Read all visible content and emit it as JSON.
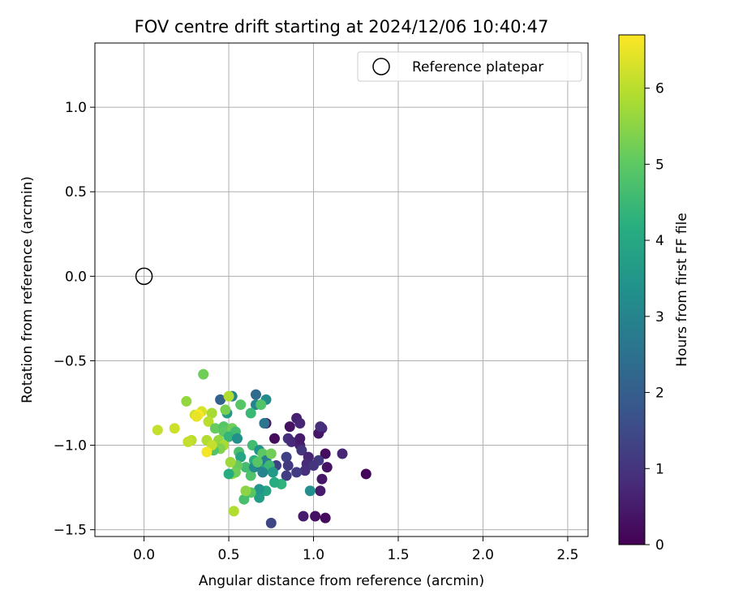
{
  "chart_data": {
    "type": "scatter",
    "title": "FOV centre drift starting at 2024/12/06 10:40:47",
    "xlabel": "Angular distance from reference (arcmin)",
    "ylabel": "Rotation from reference (arcmin)",
    "xlim": [
      -0.29,
      2.62
    ],
    "ylim": [
      -1.54,
      1.38
    ],
    "xticks": [
      0.0,
      0.5,
      1.0,
      1.5,
      2.0,
      2.5
    ],
    "xtick_labels": [
      "0.0",
      "0.5",
      "1.0",
      "1.5",
      "2.0",
      "2.5"
    ],
    "yticks": [
      -1.5,
      -1.0,
      -0.5,
      0.0,
      0.5,
      1.0
    ],
    "ytick_labels": [
      "−1.5",
      "−1.0",
      "−0.5",
      "0.0",
      "0.5",
      "1.0"
    ],
    "grid": true,
    "legend_position": "top-right",
    "reference": {
      "name": "Reference platepar",
      "x": 0.0,
      "y": 0.0
    },
    "colorbar": {
      "label": "Hours from first FF file",
      "range": [
        0,
        6.7
      ],
      "colormap": "viridis",
      "ticks": [
        0,
        1,
        2,
        3,
        4,
        5,
        6
      ],
      "tick_labels": [
        "0",
        "1",
        "2",
        "3",
        "4",
        "5",
        "6"
      ]
    },
    "points": [
      {
        "x": 1.31,
        "y": -1.17,
        "t": 0.1
      },
      {
        "x": 1.07,
        "y": -1.43,
        "t": 0.2
      },
      {
        "x": 1.01,
        "y": -1.42,
        "t": 0.3
      },
      {
        "x": 0.94,
        "y": -1.42,
        "t": 0.5
      },
      {
        "x": 1.07,
        "y": -1.05,
        "t": 0.2
      },
      {
        "x": 1.08,
        "y": -1.13,
        "t": 0.3
      },
      {
        "x": 1.05,
        "y": -1.2,
        "t": 0.4
      },
      {
        "x": 1.04,
        "y": -1.27,
        "t": 0.5
      },
      {
        "x": 1.17,
        "y": -1.05,
        "t": 0.7
      },
      {
        "x": 1.05,
        "y": -0.9,
        "t": 0.8
      },
      {
        "x": 1.03,
        "y": -0.93,
        "t": 0.4
      },
      {
        "x": 1.04,
        "y": -0.89,
        "t": 0.9
      },
      {
        "x": 0.9,
        "y": -0.84,
        "t": 0.6
      },
      {
        "x": 0.92,
        "y": -0.87,
        "t": 0.7
      },
      {
        "x": 0.86,
        "y": -0.89,
        "t": 0.3
      },
      {
        "x": 0.77,
        "y": -0.96,
        "t": 0.2
      },
      {
        "x": 0.72,
        "y": -0.87,
        "t": 0.3
      },
      {
        "x": 0.85,
        "y": -0.96,
        "t": 0.9
      },
      {
        "x": 0.87,
        "y": -0.98,
        "t": 0.8
      },
      {
        "x": 0.92,
        "y": -1.0,
        "t": 0.6
      },
      {
        "x": 0.92,
        "y": -0.96,
        "t": 0.5
      },
      {
        "x": 0.93,
        "y": -1.03,
        "t": 1.0
      },
      {
        "x": 0.97,
        "y": -1.07,
        "t": 0.7
      },
      {
        "x": 0.96,
        "y": -1.11,
        "t": 0.8
      },
      {
        "x": 1.03,
        "y": -1.09,
        "t": 1.1
      },
      {
        "x": 1.0,
        "y": -1.12,
        "t": 1.0
      },
      {
        "x": 0.95,
        "y": -1.15,
        "t": 0.9
      },
      {
        "x": 0.9,
        "y": -1.16,
        "t": 1.2
      },
      {
        "x": 0.84,
        "y": -1.07,
        "t": 1.3
      },
      {
        "x": 0.85,
        "y": -1.12,
        "t": 1.1
      },
      {
        "x": 0.84,
        "y": -1.18,
        "t": 1.2
      },
      {
        "x": 0.78,
        "y": -1.12,
        "t": 1.3
      },
      {
        "x": 0.75,
        "y": -1.46,
        "t": 1.4
      },
      {
        "x": 0.98,
        "y": -1.27,
        "t": 3.3
      },
      {
        "x": 0.81,
        "y": -1.23,
        "t": 4.3
      },
      {
        "x": 0.77,
        "y": -1.22,
        "t": 4.1
      },
      {
        "x": 0.72,
        "y": -1.27,
        "t": 3.9
      },
      {
        "x": 0.68,
        "y": -1.31,
        "t": 3.7
      },
      {
        "x": 0.68,
        "y": -1.26,
        "t": 3.5
      },
      {
        "x": 0.63,
        "y": -1.28,
        "t": 4.9
      },
      {
        "x": 0.59,
        "y": -1.32,
        "t": 4.7
      },
      {
        "x": 0.6,
        "y": -1.27,
        "t": 5.5
      },
      {
        "x": 0.53,
        "y": -1.39,
        "t": 5.9
      },
      {
        "x": 0.66,
        "y": -0.7,
        "t": 2.3
      },
      {
        "x": 0.72,
        "y": -0.73,
        "t": 3.2
      },
      {
        "x": 0.66,
        "y": -0.76,
        "t": 3.0
      },
      {
        "x": 0.69,
        "y": -0.76,
        "t": 4.8
      },
      {
        "x": 0.63,
        "y": -0.81,
        "t": 4.5
      },
      {
        "x": 0.71,
        "y": -0.87,
        "t": 2.6
      },
      {
        "x": 0.57,
        "y": -0.76,
        "t": 4.9
      },
      {
        "x": 0.52,
        "y": -0.71,
        "t": 3.1
      },
      {
        "x": 0.45,
        "y": -0.73,
        "t": 2.1
      },
      {
        "x": 0.49,
        "y": -0.81,
        "t": 3.6
      },
      {
        "x": 0.5,
        "y": -0.71,
        "t": 5.9
      },
      {
        "x": 0.48,
        "y": -0.79,
        "t": 5.3
      },
      {
        "x": 0.35,
        "y": -0.58,
        "t": 5.2
      },
      {
        "x": 0.25,
        "y": -0.74,
        "t": 5.6
      },
      {
        "x": 0.3,
        "y": -0.82,
        "t": 6.2
      },
      {
        "x": 0.34,
        "y": -0.8,
        "t": 6.3
      },
      {
        "x": 0.4,
        "y": -0.81,
        "t": 5.8
      },
      {
        "x": 0.32,
        "y": -0.82,
        "t": 6.7
      },
      {
        "x": 0.31,
        "y": -0.83,
        "t": 6.5
      },
      {
        "x": 0.38,
        "y": -0.86,
        "t": 6.0
      },
      {
        "x": 0.42,
        "y": -0.9,
        "t": 5.1
      },
      {
        "x": 0.47,
        "y": -0.89,
        "t": 4.9
      },
      {
        "x": 0.47,
        "y": -0.92,
        "t": 5.0
      },
      {
        "x": 0.52,
        "y": -0.9,
        "t": 5.2
      },
      {
        "x": 0.54,
        "y": -0.92,
        "t": 4.6
      },
      {
        "x": 0.5,
        "y": -0.95,
        "t": 4.4
      },
      {
        "x": 0.55,
        "y": -0.96,
        "t": 3.3
      },
      {
        "x": 0.44,
        "y": -0.97,
        "t": 5.6
      },
      {
        "x": 0.47,
        "y": -1.0,
        "t": 5.8
      },
      {
        "x": 0.45,
        "y": -1.02,
        "t": 5.4
      },
      {
        "x": 0.41,
        "y": -1.03,
        "t": 4.8
      },
      {
        "x": 0.37,
        "y": -0.97,
        "t": 5.9
      },
      {
        "x": 0.4,
        "y": -1.0,
        "t": 6.1
      },
      {
        "x": 0.37,
        "y": -1.04,
        "t": 6.6
      },
      {
        "x": 0.28,
        "y": -0.97,
        "t": 6.0
      },
      {
        "x": 0.26,
        "y": -0.98,
        "t": 6.1
      },
      {
        "x": 0.18,
        "y": -0.9,
        "t": 6.2
      },
      {
        "x": 0.08,
        "y": -0.91,
        "t": 6.1
      },
      {
        "x": 0.56,
        "y": -1.04,
        "t": 4.7
      },
      {
        "x": 0.57,
        "y": -1.07,
        "t": 3.9
      },
      {
        "x": 0.6,
        "y": -1.13,
        "t": 4.6
      },
      {
        "x": 0.55,
        "y": -1.12,
        "t": 5.1
      },
      {
        "x": 0.51,
        "y": -1.1,
        "t": 5.7
      },
      {
        "x": 0.52,
        "y": -1.17,
        "t": 5.8
      },
      {
        "x": 0.54,
        "y": -1.16,
        "t": 5.2
      },
      {
        "x": 0.5,
        "y": -1.17,
        "t": 4.1
      },
      {
        "x": 0.63,
        "y": -1.18,
        "t": 4.8
      },
      {
        "x": 0.64,
        "y": -1.0,
        "t": 4.6
      },
      {
        "x": 0.65,
        "y": -1.09,
        "t": 4.2
      },
      {
        "x": 0.65,
        "y": -1.13,
        "t": 3.2
      },
      {
        "x": 0.68,
        "y": -1.03,
        "t": 3.4
      },
      {
        "x": 0.7,
        "y": -1.05,
        "t": 5.0
      },
      {
        "x": 0.72,
        "y": -1.09,
        "t": 2.9
      },
      {
        "x": 0.69,
        "y": -1.12,
        "t": 2.7
      },
      {
        "x": 0.72,
        "y": -1.14,
        "t": 4.0
      },
      {
        "x": 0.75,
        "y": -1.05,
        "t": 5.2
      },
      {
        "x": 0.74,
        "y": -1.12,
        "t": 4.5
      },
      {
        "x": 0.76,
        "y": -1.16,
        "t": 3.6
      },
      {
        "x": 0.7,
        "y": -1.16,
        "t": 3.0
      },
      {
        "x": 0.67,
        "y": -1.1,
        "t": 4.9
      }
    ]
  }
}
